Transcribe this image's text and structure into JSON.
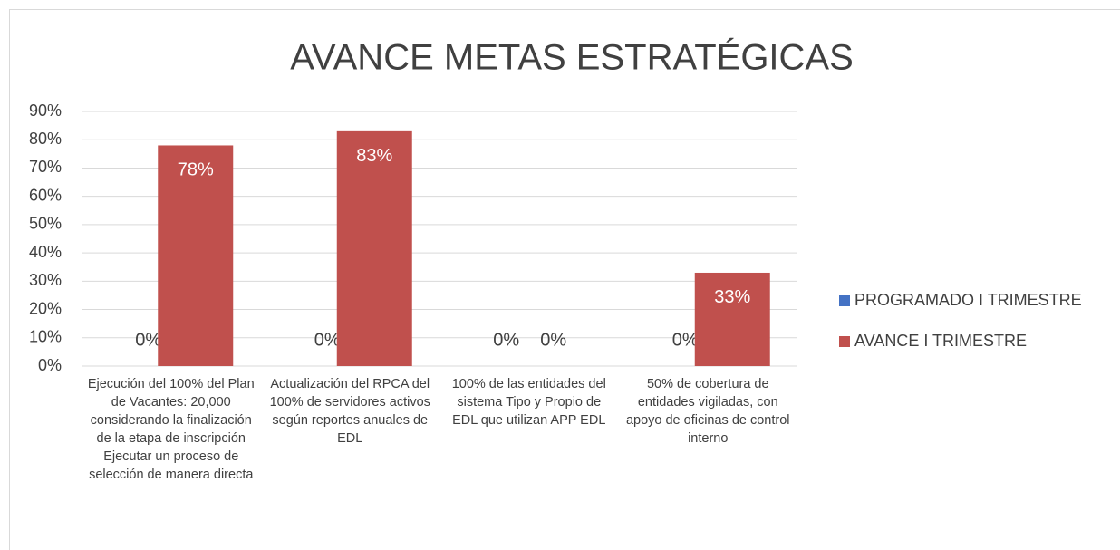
{
  "chart_data": {
    "type": "bar",
    "title": "AVANCE  METAS ESTRATÉGICAS",
    "categories": [
      "Ejecución del 100% del Plan de Vacantes: 20,000 considerando la finalización de la etapa de inscripción\nEjecutar un proceso de selección de manera directa",
      "Actualización del RPCA del 100% de servidores activos según reportes anuales de EDL",
      "100% de las entidades del sistema Tipo y Propio de EDL que utilizan APP EDL",
      "50% de cobertura de entidades vigiladas, con apoyo de  oficinas de control interno"
    ],
    "series": [
      {
        "name": "PROGRAMADO I TRIMESTRE",
        "color": "#4472c4",
        "values": [
          0,
          0,
          0,
          0
        ],
        "value_labels": [
          "0%",
          "0%",
          "0%",
          "0%"
        ]
      },
      {
        "name": "AVANCE I TRIMESTRE",
        "color": "#c0504d",
        "values": [
          78,
          83,
          0,
          33
        ],
        "value_labels": [
          "78%",
          "83%",
          "0%",
          "33%"
        ]
      }
    ],
    "ylim": [
      0,
      90
    ],
    "yticks": [
      {
        "value": 0,
        "label": "0%"
      },
      {
        "value": 10,
        "label": "10%"
      },
      {
        "value": 20,
        "label": "20%"
      },
      {
        "value": 30,
        "label": "30%"
      },
      {
        "value": 40,
        "label": "40%"
      },
      {
        "value": 50,
        "label": "50%"
      },
      {
        "value": 60,
        "label": "60%"
      },
      {
        "value": 70,
        "label": "70%"
      },
      {
        "value": 80,
        "label": "80%"
      },
      {
        "value": 90,
        "label": "90%"
      }
    ],
    "grid": true,
    "legend": "right"
  }
}
